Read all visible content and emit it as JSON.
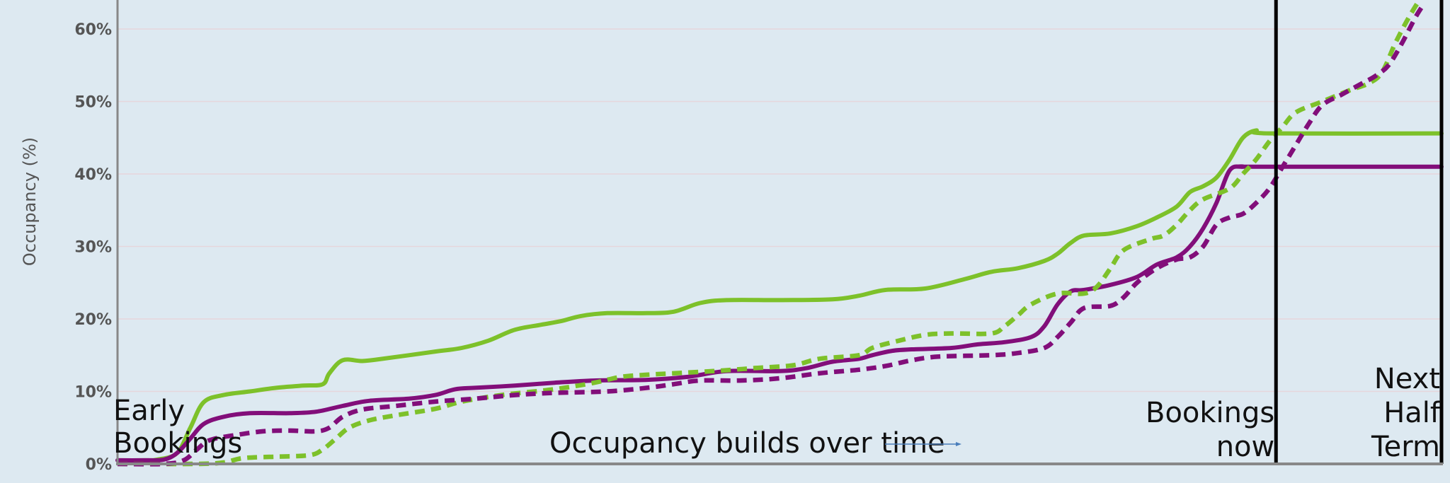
{
  "chart_data": {
    "type": "line",
    "ylabel": "Occupancy (%)",
    "xlabel": "",
    "ylim": [
      0,
      64
    ],
    "xlim": [
      0,
      100
    ],
    "y_ticks": [
      {
        "value": 0,
        "label": "0%"
      },
      {
        "value": 10,
        "label": "10%"
      },
      {
        "value": 20,
        "label": "20%"
      },
      {
        "value": 30,
        "label": "30%"
      },
      {
        "value": 40,
        "label": "40%"
      },
      {
        "value": 50,
        "label": "50%"
      },
      {
        "value": 60,
        "label": "60%"
      }
    ],
    "grid": true,
    "legend": "none",
    "colors": {
      "green": "#7dc12a",
      "purple": "#820e7a",
      "markers": "#000000",
      "axis": "#888888"
    },
    "series": [
      {
        "color": "#7dc12a",
        "dash": false,
        "points": [
          [
            0,
            0.5
          ],
          [
            2,
            0.5
          ],
          [
            3,
            0.6
          ],
          [
            4.5,
            1.5
          ],
          [
            5.5,
            5
          ],
          [
            6.5,
            8.5
          ],
          [
            8,
            9.5
          ],
          [
            10,
            10
          ],
          [
            12,
            10.5
          ],
          [
            14,
            10.8
          ],
          [
            15.5,
            11
          ],
          [
            16,
            12.5
          ],
          [
            17,
            14.3
          ],
          [
            18.5,
            14.2
          ],
          [
            20,
            14.5
          ],
          [
            24,
            15.5
          ],
          [
            26,
            16
          ],
          [
            28,
            17
          ],
          [
            30,
            18.5
          ],
          [
            32,
            19.2
          ],
          [
            33.5,
            19.7
          ],
          [
            35,
            20.4
          ],
          [
            37,
            20.8
          ],
          [
            40,
            20.8
          ],
          [
            42,
            21
          ],
          [
            44,
            22.2
          ],
          [
            46,
            22.6
          ],
          [
            50,
            22.6
          ],
          [
            54,
            22.7
          ],
          [
            56,
            23.2
          ],
          [
            58,
            24
          ],
          [
            61,
            24.2
          ],
          [
            64,
            25.5
          ],
          [
            66,
            26.5
          ],
          [
            68,
            27
          ],
          [
            70,
            28
          ],
          [
            71,
            29
          ],
          [
            72,
            30.5
          ],
          [
            73,
            31.5
          ],
          [
            75,
            31.8
          ],
          [
            77,
            32.8
          ],
          [
            78.5,
            34
          ],
          [
            80,
            35.5
          ],
          [
            81,
            37.5
          ],
          [
            82,
            38.3
          ],
          [
            83,
            39.5
          ],
          [
            84,
            42
          ],
          [
            85,
            45
          ],
          [
            86,
            46
          ],
          [
            87,
            45.6
          ],
          [
            100,
            45.6
          ]
        ]
      },
      {
        "color": "#820e7a",
        "dash": false,
        "points": [
          [
            0,
            0.5
          ],
          [
            2,
            0.5
          ],
          [
            3.5,
            0.6
          ],
          [
            4.5,
            1.5
          ],
          [
            5.5,
            3.5
          ],
          [
            6.5,
            5.5
          ],
          [
            8,
            6.5
          ],
          [
            10,
            7
          ],
          [
            13,
            7
          ],
          [
            15,
            7.2
          ],
          [
            17,
            8
          ],
          [
            19,
            8.7
          ],
          [
            22,
            9
          ],
          [
            24,
            9.5
          ],
          [
            25.5,
            10.3
          ],
          [
            27,
            10.5
          ],
          [
            30,
            10.8
          ],
          [
            33,
            11.2
          ],
          [
            36,
            11.5
          ],
          [
            40,
            11.6
          ],
          [
            43,
            12
          ],
          [
            46,
            12.8
          ],
          [
            50,
            12.8
          ],
          [
            52,
            13.2
          ],
          [
            54,
            14.1
          ],
          [
            56,
            14.5
          ],
          [
            57,
            15
          ],
          [
            58.5,
            15.6
          ],
          [
            60,
            15.8
          ],
          [
            63,
            16
          ],
          [
            65,
            16.5
          ],
          [
            67,
            16.8
          ],
          [
            69,
            17.5
          ],
          [
            70,
            19
          ],
          [
            71,
            22
          ],
          [
            72,
            23.8
          ],
          [
            73,
            24
          ],
          [
            75,
            24.7
          ],
          [
            77,
            25.8
          ],
          [
            78.5,
            27.5
          ],
          [
            80,
            28.5
          ],
          [
            81,
            30
          ],
          [
            82,
            32.5
          ],
          [
            83,
            36
          ],
          [
            84,
            40.5
          ],
          [
            85,
            41
          ],
          [
            86,
            41
          ],
          [
            100,
            41
          ]
        ]
      },
      {
        "color": "#7dc12a",
        "dash": true,
        "points": [
          [
            0,
            0
          ],
          [
            6,
            0
          ],
          [
            8,
            0.2
          ],
          [
            9.5,
            0.8
          ],
          [
            12,
            1
          ],
          [
            14.5,
            1.2
          ],
          [
            15.5,
            2
          ],
          [
            16.5,
            3.5
          ],
          [
            17.5,
            5
          ],
          [
            19,
            6
          ],
          [
            21,
            6.7
          ],
          [
            24,
            7.6
          ],
          [
            26,
            8.6
          ],
          [
            29,
            9.5
          ],
          [
            33,
            10.3
          ],
          [
            36,
            11.2
          ],
          [
            38,
            12
          ],
          [
            40,
            12.3
          ],
          [
            42,
            12.5
          ],
          [
            45,
            12.8
          ],
          [
            48,
            13.2
          ],
          [
            51,
            13.6
          ],
          [
            53,
            14.5
          ],
          [
            56,
            15
          ],
          [
            57,
            16
          ],
          [
            59,
            17
          ],
          [
            61,
            17.8
          ],
          [
            63,
            18
          ],
          [
            66,
            18
          ],
          [
            67,
            19
          ],
          [
            68,
            20.5
          ],
          [
            69,
            22
          ],
          [
            71,
            23.5
          ],
          [
            73,
            23.5
          ],
          [
            74,
            24.5
          ],
          [
            75,
            27
          ],
          [
            76,
            29.5
          ],
          [
            78,
            31
          ],
          [
            79,
            31.5
          ],
          [
            80,
            33
          ],
          [
            81,
            35
          ],
          [
            82,
            36.5
          ],
          [
            84,
            38
          ],
          [
            85,
            40
          ],
          [
            86,
            42
          ],
          [
            87,
            44.5
          ],
          [
            88,
            46.5
          ],
          [
            89,
            48.5
          ],
          [
            91,
            50
          ],
          [
            93,
            51.5
          ],
          [
            94.5,
            52.5
          ],
          [
            95.5,
            54
          ],
          [
            96.5,
            58
          ],
          [
            97.5,
            61.5
          ],
          [
            98.5,
            64.5
          ]
        ]
      },
      {
        "color": "#820e7a",
        "dash": true,
        "points": [
          [
            0,
            0
          ],
          [
            3.5,
            0
          ],
          [
            5,
            0.5
          ],
          [
            6,
            2
          ],
          [
            7,
            3.3
          ],
          [
            9,
            4
          ],
          [
            11,
            4.5
          ],
          [
            13,
            4.6
          ],
          [
            15,
            4.5
          ],
          [
            16,
            5
          ],
          [
            17,
            6.5
          ],
          [
            18.5,
            7.5
          ],
          [
            21,
            8
          ],
          [
            24,
            8.6
          ],
          [
            27,
            9
          ],
          [
            30,
            9.5
          ],
          [
            33,
            9.8
          ],
          [
            37,
            10
          ],
          [
            40,
            10.5
          ],
          [
            42,
            11
          ],
          [
            44,
            11.5
          ],
          [
            47,
            11.5
          ],
          [
            50,
            11.8
          ],
          [
            53,
            12.5
          ],
          [
            56,
            13
          ],
          [
            58,
            13.5
          ],
          [
            60,
            14.3
          ],
          [
            62,
            14.8
          ],
          [
            66,
            15
          ],
          [
            68,
            15.3
          ],
          [
            70,
            16
          ],
          [
            71,
            17.5
          ],
          [
            72,
            19.5
          ],
          [
            73,
            21.5
          ],
          [
            75,
            21.8
          ],
          [
            76,
            23
          ],
          [
            77,
            25
          ],
          [
            78.5,
            27
          ],
          [
            80,
            28.2
          ],
          [
            81,
            28.5
          ],
          [
            82,
            30
          ],
          [
            83,
            33
          ],
          [
            84,
            34
          ],
          [
            85,
            34.5
          ],
          [
            86,
            36
          ],
          [
            87,
            38
          ],
          [
            88,
            41
          ],
          [
            89,
            44
          ],
          [
            90,
            47
          ],
          [
            91,
            49.5
          ],
          [
            92.5,
            51
          ],
          [
            94,
            52.5
          ],
          [
            95,
            53.5
          ],
          [
            96,
            55
          ],
          [
            97,
            58
          ],
          [
            98,
            61.5
          ],
          [
            98.5,
            63
          ]
        ]
      }
    ],
    "markers": [
      {
        "x": 87.5,
        "label_lines": [
          "Bookings",
          "now"
        ]
      },
      {
        "x": 100,
        "label_lines": [
          "Next",
          "Half",
          "Term"
        ]
      }
    ],
    "annotations": {
      "early_lines": [
        "Early",
        "Bookings"
      ],
      "center": "Occupancy builds over time"
    }
  }
}
